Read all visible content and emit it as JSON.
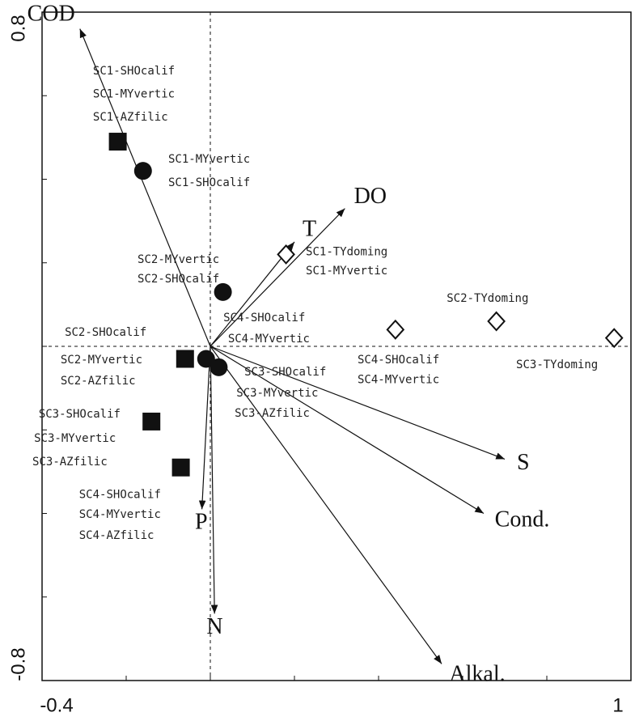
{
  "chart_data": {
    "type": "biplot",
    "xlim": [
      -0.4,
      1.0
    ],
    "ylim": [
      -0.8,
      0.8
    ],
    "xticks": [
      -0.4,
      1.0
    ],
    "yticks": [
      -0.8,
      0.8
    ],
    "xminorticks": [
      -0.2,
      0,
      0.2,
      0.4,
      0.6,
      0.8
    ],
    "yminorticks": [
      -0.6,
      -0.4,
      -0.2,
      0,
      0.2,
      0.4,
      0.6
    ],
    "vectors": [
      {
        "name": "COD",
        "x": -0.31,
        "y": 0.76
      },
      {
        "name": "DO",
        "x": 0.32,
        "y": 0.33
      },
      {
        "name": "T",
        "x": 0.2,
        "y": 0.25
      },
      {
        "name": "S",
        "x": 0.7,
        "y": -0.27
      },
      {
        "name": "Cond.",
        "x": 0.65,
        "y": -0.4
      },
      {
        "name": "Alkal.",
        "x": 0.55,
        "y": -0.76
      },
      {
        "name": "N",
        "x": 0.01,
        "y": -0.64
      },
      {
        "name": "P",
        "x": -0.02,
        "y": -0.39
      }
    ],
    "series": [
      {
        "marker": "square",
        "color": "#111111",
        "x": [
          -0.22,
          -0.06,
          -0.14,
          -0.07
        ],
        "y": [
          0.49,
          -0.03,
          -0.18,
          -0.29
        ]
      },
      {
        "marker": "circle",
        "color": "#111111",
        "x": [
          -0.16,
          0.03,
          -0.01,
          0.02
        ],
        "y": [
          0.42,
          0.13,
          -0.03,
          -0.05
        ]
      },
      {
        "marker": "diamond",
        "color": "#111111",
        "x": [
          0.18,
          0.44,
          0.68,
          0.96
        ],
        "y": [
          0.22,
          0.04,
          0.06,
          0.02
        ]
      }
    ],
    "annotations": [
      {
        "text": "SC1-SHOcalif",
        "x": -0.279,
        "y": 0.659
      },
      {
        "text": "SC1-MYvertic",
        "x": -0.279,
        "y": 0.603
      },
      {
        "text": "SC1-AZfilic",
        "x": -0.279,
        "y": 0.548
      },
      {
        "text": "SC1-MYvertic",
        "x": -0.1,
        "y": 0.447
      },
      {
        "text": "SC1-SHOcalif",
        "x": -0.1,
        "y": 0.391
      },
      {
        "text": "SC1-TYdoming",
        "x": 0.227,
        "y": 0.226
      },
      {
        "text": "SC1-MYvertic",
        "x": 0.227,
        "y": 0.18
      },
      {
        "text": "SC2-MYvertic",
        "x": -0.173,
        "y": 0.207
      },
      {
        "text": "SC2-SHOcalif",
        "x": -0.173,
        "y": 0.161
      },
      {
        "text": "SC2-TYdoming",
        "x": 0.562,
        "y": 0.114
      },
      {
        "text": "SC4-SHOcalif",
        "x": 0.031,
        "y": 0.068
      },
      {
        "text": "SC4-MYvertic",
        "x": 0.042,
        "y": 0.017
      },
      {
        "text": "SC2-SHOcalif",
        "x": -0.346,
        "y": 0.033
      },
      {
        "text": "SC3-TYdoming",
        "x": 0.727,
        "y": -0.045
      },
      {
        "text": "SC4-SHOcalif",
        "x": 0.35,
        "y": -0.033
      },
      {
        "text": "SC4-MYvertic",
        "x": 0.35,
        "y": -0.08
      },
      {
        "text": "SC2-MYvertic",
        "x": -0.356,
        "y": -0.033
      },
      {
        "text": "SC2-AZfilic",
        "x": -0.356,
        "y": -0.083
      },
      {
        "text": "SC3-SHOcalif",
        "x": 0.081,
        "y": -0.062
      },
      {
        "text": "SC3-MYvertic",
        "x": 0.062,
        "y": -0.112
      },
      {
        "text": "SC3-AZfilic",
        "x": 0.058,
        "y": -0.161
      },
      {
        "text": "SC3-SHOcalif",
        "x": -0.408,
        "y": -0.163
      },
      {
        "text": "SC3-MYvertic",
        "x": -0.419,
        "y": -0.221
      },
      {
        "text": "SC3-AZfilic",
        "x": -0.423,
        "y": -0.277
      },
      {
        "text": "SC4-SHOcalif",
        "x": -0.312,
        "y": -0.355
      },
      {
        "text": "SC4-MYvertic",
        "x": -0.312,
        "y": -0.403
      },
      {
        "text": "SC4-AZfilic",
        "x": -0.312,
        "y": -0.453
      }
    ]
  }
}
